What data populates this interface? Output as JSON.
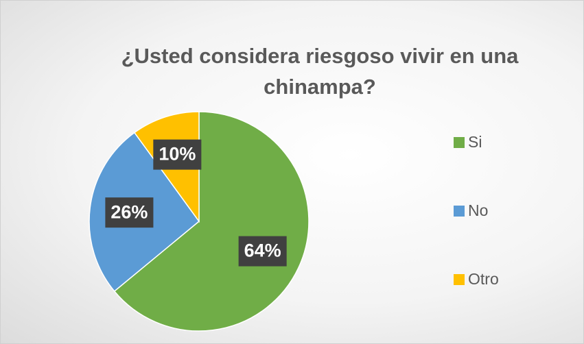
{
  "chart_data": {
    "type": "pie",
    "title": "¿Usted considera riesgoso vivir en una chinampa?",
    "categories": [
      "Si",
      "No",
      "Otro"
    ],
    "values": [
      64,
      26,
      10
    ],
    "value_labels": [
      "64%",
      "26%",
      "10%"
    ],
    "colors": [
      "#70ad47",
      "#5b9bd5",
      "#ffc000"
    ],
    "legend": "right"
  }
}
